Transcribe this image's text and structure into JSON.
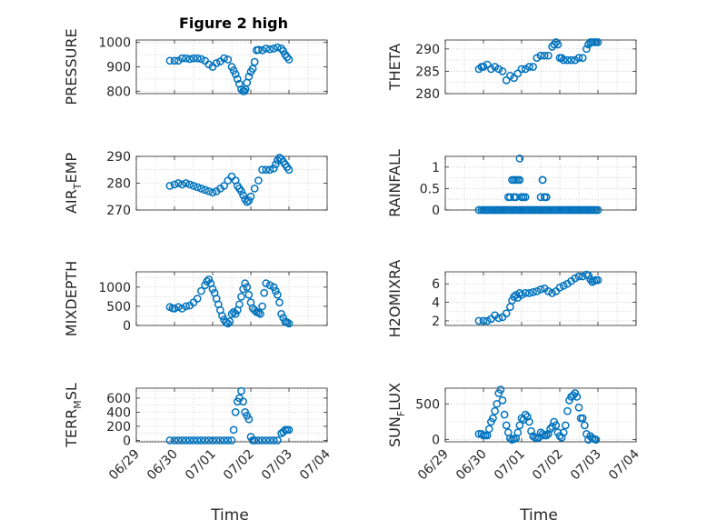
{
  "figure": {
    "title": "Figure 2 high",
    "marker_color": "#0072BD"
  },
  "chart_data": [
    {
      "type": "scatter",
      "title": "Figure 2 high",
      "ylabel": "PRESSURE",
      "ylim": [
        790,
        1010
      ],
      "yticks": [
        800,
        900,
        1000
      ],
      "xlim": [
        0,
        5
      ],
      "x_ticklabels": [
        "06/29",
        "06/30",
        "07/01",
        "07/02",
        "07/03",
        "07/04"
      ],
      "show_x_ticklabels": false,
      "grid": true,
      "series": [
        {
          "x": [
            0.88,
            1.0,
            1.1,
            1.2,
            1.3,
            1.4,
            1.5,
            1.6,
            1.7,
            1.8,
            1.9,
            2.0,
            2.1,
            2.2,
            2.3,
            2.4,
            2.5,
            2.55,
            2.6,
            2.65,
            2.7,
            2.75,
            2.8,
            2.83,
            2.86,
            2.9,
            2.95,
            3.0,
            3.05,
            3.1,
            3.15,
            3.2,
            3.3,
            3.4,
            3.5,
            3.6,
            3.7,
            3.8,
            3.85,
            3.9,
            3.95,
            4.0
          ],
          "y": [
            925,
            925,
            925,
            935,
            935,
            932,
            935,
            935,
            932,
            925,
            910,
            900,
            915,
            922,
            935,
            930,
            900,
            885,
            870,
            850,
            830,
            808,
            800,
            800,
            808,
            835,
            860,
            880,
            892,
            920,
            968,
            970,
            968,
            975,
            972,
            975,
            980,
            975,
            965,
            950,
            940,
            930
          ]
        }
      ]
    },
    {
      "type": "scatter",
      "ylabel": "THETA",
      "ylim": [
        280,
        292
      ],
      "yticks": [
        280,
        285,
        290
      ],
      "xlim": [
        0,
        5
      ],
      "x_ticklabels": [
        "06/29",
        "06/30",
        "07/01",
        "07/02",
        "07/03",
        "07/04"
      ],
      "show_x_ticklabels": false,
      "grid": true,
      "series": [
        {
          "x": [
            0.88,
            0.95,
            1.0,
            1.1,
            1.2,
            1.3,
            1.4,
            1.5,
            1.6,
            1.7,
            1.8,
            1.9,
            2.0,
            2.1,
            2.2,
            2.3,
            2.4,
            2.5,
            2.6,
            2.7,
            2.8,
            2.85,
            2.9,
            2.95,
            3.0,
            3.05,
            3.1,
            3.2,
            3.3,
            3.4,
            3.5,
            3.6,
            3.7,
            3.75,
            3.8,
            3.85,
            3.9,
            3.95,
            4.0
          ],
          "y": [
            285.5,
            286,
            286,
            286.5,
            285.5,
            286,
            285.5,
            285,
            283,
            284,
            283.5,
            284.5,
            285.5,
            285.5,
            286,
            286,
            288,
            288.5,
            288.5,
            288.5,
            290.5,
            291,
            291.5,
            291,
            288,
            288,
            287.5,
            287.5,
            287.5,
            287.5,
            288,
            288,
            290,
            291,
            291.5,
            291.5,
            291.5,
            291.5,
            291.5
          ]
        }
      ]
    },
    {
      "type": "scatter",
      "ylabel": "AIR_TEMP",
      "ylim": [
        270,
        290
      ],
      "yticks": [
        270,
        280,
        290
      ],
      "xlim": [
        0,
        5
      ],
      "x_ticklabels": [
        "06/29",
        "06/30",
        "07/01",
        "07/02",
        "07/03",
        "07/04"
      ],
      "show_x_ticklabels": false,
      "grid": true,
      "series": [
        {
          "x": [
            0.88,
            1.0,
            1.1,
            1.2,
            1.3,
            1.4,
            1.5,
            1.6,
            1.7,
            1.8,
            1.9,
            2.0,
            2.1,
            2.2,
            2.3,
            2.4,
            2.5,
            2.6,
            2.65,
            2.7,
            2.75,
            2.8,
            2.85,
            2.9,
            2.95,
            3.0,
            3.1,
            3.2,
            3.3,
            3.4,
            3.5,
            3.6,
            3.65,
            3.7,
            3.75,
            3.8,
            3.85,
            3.9,
            3.95,
            4.0
          ],
          "y": [
            279,
            279.5,
            280,
            279.5,
            280,
            279.5,
            279,
            278.5,
            278,
            277.5,
            277,
            276.5,
            277,
            278,
            279,
            281,
            282.5,
            281,
            279,
            278,
            277,
            275.5,
            274,
            273,
            273.5,
            275,
            278,
            281,
            285,
            285,
            285,
            285.5,
            287,
            288.5,
            289.5,
            289,
            288,
            287,
            286,
            285
          ]
        }
      ]
    },
    {
      "type": "scatter",
      "ylabel": "RAINFALL",
      "ylim": [
        0,
        1.25
      ],
      "yticks": [
        0,
        0.5,
        1
      ],
      "xlim": [
        0,
        5
      ],
      "x_ticklabels": [
        "06/29",
        "06/30",
        "07/01",
        "07/02",
        "07/03",
        "07/04"
      ],
      "show_x_ticklabels": false,
      "grid": true,
      "series": [
        {
          "x": [
            0.88,
            0.95,
            1.0,
            1.05,
            1.1,
            1.15,
            1.2,
            1.25,
            1.3,
            1.35,
            1.4,
            1.45,
            1.5,
            1.55,
            1.6,
            1.65,
            1.7,
            1.75,
            1.8,
            1.85,
            1.9,
            1.95,
            2.0,
            2.05,
            2.1,
            2.15,
            2.2,
            2.25,
            2.3,
            2.35,
            2.4,
            2.45,
            2.5,
            2.55,
            2.6,
            2.65,
            2.7,
            2.75,
            2.8,
            2.85,
            2.9,
            2.95,
            3.0,
            3.05,
            3.1,
            3.15,
            3.2,
            3.25,
            3.3,
            3.35,
            3.4,
            3.45,
            3.5,
            3.55,
            3.6,
            3.65,
            3.7,
            3.75,
            3.8,
            3.85,
            3.9,
            3.95,
            4.0,
            1.7,
            1.75,
            1.8,
            1.85,
            1.9,
            1.95,
            2.0,
            2.05,
            2.1,
            2.5,
            2.55,
            2.6,
            2.65,
            1.95,
            1.8,
            1.65,
            1.85,
            2.0,
            2.55,
            2.6
          ],
          "y": [
            0,
            0,
            0,
            0,
            0,
            0,
            0,
            0,
            0,
            0,
            0,
            0,
            0,
            0,
            0,
            0,
            0,
            0,
            0,
            0,
            0,
            0,
            0,
            0,
            0,
            0,
            0,
            0,
            0,
            0,
            0,
            0,
            0,
            0,
            0,
            0,
            0,
            0,
            0,
            0,
            0,
            0,
            0,
            0,
            0,
            0,
            0,
            0,
            0,
            0,
            0,
            0,
            0,
            0,
            0,
            0,
            0,
            0,
            0,
            0,
            0,
            0,
            0,
            0.3,
            0.7,
            0.7,
            0.3,
            0.7,
            0.7,
            0.3,
            0.3,
            0.3,
            0.3,
            0.7,
            0.3,
            0.3,
            1.2,
            0.3,
            0.3,
            0.7,
            0.3,
            0.7,
            0.3
          ]
        }
      ]
    },
    {
      "type": "scatter",
      "ylabel": "MIXDEPTH",
      "ylim": [
        0,
        1400
      ],
      "yticks": [
        0,
        500,
        1000
      ],
      "xlim": [
        0,
        5
      ],
      "x_ticklabels": [
        "06/29",
        "06/30",
        "07/01",
        "07/02",
        "07/03",
        "07/04"
      ],
      "show_x_ticklabels": false,
      "grid": true,
      "series": [
        {
          "x": [
            0.88,
            0.95,
            1.0,
            1.1,
            1.2,
            1.3,
            1.4,
            1.5,
            1.6,
            1.7,
            1.8,
            1.85,
            1.9,
            1.95,
            2.0,
            2.05,
            2.1,
            2.15,
            2.2,
            2.25,
            2.3,
            2.35,
            2.4,
            2.45,
            2.5,
            2.55,
            2.6,
            2.65,
            2.7,
            2.75,
            2.8,
            2.85,
            2.9,
            2.95,
            3.0,
            3.05,
            3.1,
            3.15,
            3.2,
            3.25,
            3.3,
            3.35,
            3.4,
            3.5,
            3.6,
            3.65,
            3.7,
            3.75,
            3.8,
            3.85,
            3.9,
            3.95,
            4.0
          ],
          "y": [
            480,
            450,
            440,
            480,
            440,
            500,
            520,
            600,
            700,
            900,
            1050,
            1150,
            1200,
            1100,
            950,
            850,
            700,
            550,
            400,
            250,
            150,
            80,
            50,
            100,
            300,
            350,
            300,
            400,
            550,
            750,
            950,
            1100,
            1000,
            800,
            600,
            450,
            400,
            350,
            330,
            300,
            500,
            850,
            1100,
            1050,
            1000,
            900,
            800,
            600,
            300,
            200,
            100,
            80,
            50
          ]
        }
      ]
    },
    {
      "type": "scatter",
      "ylabel": "H2OMIXRA",
      "ylim": [
        1.5,
        7.3
      ],
      "yticks": [
        2,
        4,
        6
      ],
      "xlim": [
        0,
        5
      ],
      "x_ticklabels": [
        "06/29",
        "06/30",
        "07/01",
        "07/02",
        "07/03",
        "07/04"
      ],
      "show_x_ticklabels": false,
      "grid": true,
      "series": [
        {
          "x": [
            0.88,
            1.0,
            1.1,
            1.2,
            1.3,
            1.4,
            1.5,
            1.6,
            1.7,
            1.75,
            1.8,
            1.85,
            1.9,
            1.95,
            2.0,
            2.1,
            2.2,
            2.3,
            2.4,
            2.5,
            2.6,
            2.7,
            2.8,
            2.9,
            3.0,
            3.1,
            3.2,
            3.3,
            3.4,
            3.5,
            3.6,
            3.7,
            3.75,
            3.8,
            3.85,
            3.9,
            3.95,
            4.0
          ],
          "y": [
            2,
            2,
            2,
            2.2,
            2.6,
            2.3,
            2.4,
            2.8,
            3.5,
            4.2,
            4.6,
            4.8,
            4.5,
            5,
            4.8,
            5,
            5,
            5.1,
            5.2,
            5.4,
            5.5,
            5.2,
            5,
            5.2,
            5.6,
            5.8,
            6,
            6.3,
            6.6,
            6.8,
            6.8,
            7,
            6.9,
            6.5,
            6.2,
            6.3,
            6.4,
            6.4
          ]
        }
      ]
    },
    {
      "type": "scatter",
      "ylabel": "TERR_MSL",
      "ylim": [
        -20,
        740
      ],
      "yticks": [
        0,
        200,
        400,
        600
      ],
      "xlim": [
        0,
        5
      ],
      "x_ticklabels": [
        "06/29",
        "06/30",
        "07/01",
        "07/02",
        "07/03",
        "07/04"
      ],
      "show_x_ticklabels": true,
      "xlabel": "Time",
      "grid": true,
      "series": [
        {
          "x": [
            0.88,
            1.0,
            1.1,
            1.2,
            1.3,
            1.4,
            1.5,
            1.6,
            1.7,
            1.8,
            1.9,
            2.0,
            2.1,
            2.2,
            2.3,
            2.4,
            2.5,
            2.55,
            2.6,
            2.65,
            2.7,
            2.75,
            2.8,
            2.85,
            2.9,
            2.95,
            3.0,
            3.05,
            3.1,
            3.2,
            3.3,
            3.4,
            3.5,
            3.6,
            3.7,
            3.8,
            3.85,
            3.9,
            3.95,
            4.0
          ],
          "y": [
            0,
            0,
            0,
            0,
            0,
            0,
            0,
            0,
            0,
            0,
            0,
            0,
            0,
            0,
            0,
            0,
            0,
            150,
            400,
            550,
            600,
            700,
            550,
            400,
            350,
            300,
            50,
            0,
            0,
            0,
            0,
            0,
            0,
            0,
            0,
            100,
            120,
            150,
            150,
            150
          ]
        }
      ]
    },
    {
      "type": "scatter",
      "ylabel": "SUN_FLUX",
      "ylim": [
        -30,
        720
      ],
      "yticks": [
        0,
        500
      ],
      "xlim": [
        0,
        5
      ],
      "x_ticklabels": [
        "06/29",
        "06/30",
        "07/01",
        "07/02",
        "07/03",
        "07/04"
      ],
      "show_x_ticklabels": true,
      "xlabel": "Time",
      "grid": true,
      "series": [
        {
          "x": [
            0.88,
            0.95,
            1.0,
            1.05,
            1.1,
            1.15,
            1.2,
            1.25,
            1.3,
            1.35,
            1.4,
            1.45,
            1.5,
            1.55,
            1.6,
            1.65,
            1.7,
            1.75,
            1.8,
            1.85,
            1.9,
            1.95,
            2.0,
            2.05,
            2.1,
            2.15,
            2.2,
            2.25,
            2.3,
            2.35,
            2.4,
            2.45,
            2.5,
            2.55,
            2.6,
            2.65,
            2.7,
            2.75,
            2.8,
            2.85,
            2.9,
            2.95,
            3.0,
            3.05,
            3.1,
            3.15,
            3.2,
            3.25,
            3.3,
            3.35,
            3.4,
            3.45,
            3.5,
            3.55,
            3.6,
            3.65,
            3.7,
            3.75,
            3.8,
            3.85,
            3.9,
            3.95
          ],
          "y": [
            80,
            80,
            60,
            60,
            60,
            150,
            250,
            300,
            400,
            500,
            650,
            700,
            550,
            350,
            200,
            100,
            20,
            0,
            10,
            20,
            100,
            200,
            300,
            280,
            350,
            320,
            250,
            120,
            50,
            30,
            20,
            30,
            100,
            80,
            60,
            60,
            80,
            150,
            180,
            250,
            200,
            100,
            50,
            30,
            100,
            200,
            400,
            550,
            600,
            620,
            650,
            600,
            450,
            300,
            300,
            200,
            80,
            0,
            50,
            20,
            10,
            0
          ]
        }
      ]
    }
  ]
}
